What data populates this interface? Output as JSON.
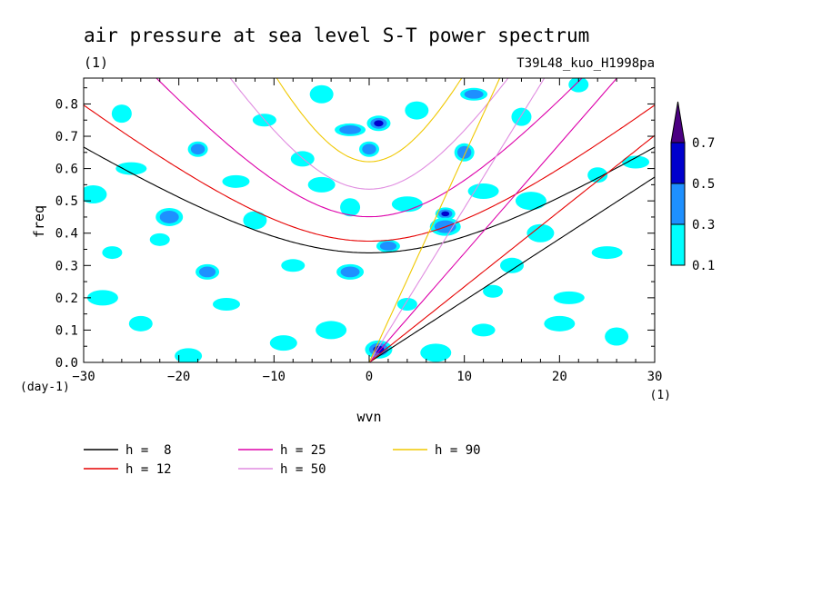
{
  "chart_data": {
    "type": "heatmap",
    "title": "air pressure at sea level S-T power spectrum",
    "subtitle_left": "(1)",
    "subtitle_right": "T39L48_kuo_H1998pa",
    "xlabel": "wvn",
    "ylabel": "freq",
    "x_unit": "(1)",
    "y_unit": "(day-1)",
    "xlim": [
      -30,
      30
    ],
    "ylim": [
      0,
      0.88
    ],
    "x_ticks": [
      -30,
      -20,
      -10,
      0,
      10,
      20,
      30
    ],
    "y_ticks": [
      0.0,
      0.1,
      0.2,
      0.3,
      0.4,
      0.5,
      0.6,
      0.7,
      0.8
    ],
    "colorbar": {
      "levels": [
        "0.1",
        "0.3",
        "0.5",
        "0.7"
      ],
      "colors": [
        "#00ffff",
        "#1e90ff",
        "#0000cd",
        "#4b0082"
      ]
    },
    "field_blobs": [
      {
        "x": 8,
        "y": 0.46,
        "level": 2
      },
      {
        "x": 1,
        "y": 0.74,
        "level": 2
      },
      {
        "x": 1,
        "y": 0.04,
        "level": 2
      },
      {
        "x": -2,
        "y": 0.72,
        "level": 1
      },
      {
        "x": 0,
        "y": 0.66,
        "level": 1
      },
      {
        "x": 5,
        "y": 0.78,
        "level": 0
      },
      {
        "x": 11,
        "y": 0.83,
        "level": 1
      },
      {
        "x": 12,
        "y": 0.53,
        "level": 0
      },
      {
        "x": 10,
        "y": 0.65,
        "level": 1
      },
      {
        "x": 2,
        "y": 0.36,
        "level": 1
      },
      {
        "x": -2,
        "y": 0.28,
        "level": 1
      },
      {
        "x": 8,
        "y": 0.42,
        "level": 1
      },
      {
        "x": -22,
        "y": 0.38,
        "level": 0
      },
      {
        "x": -17,
        "y": 0.28,
        "level": 1
      },
      {
        "x": -21,
        "y": 0.45,
        "level": 1
      },
      {
        "x": -25,
        "y": 0.6,
        "level": 0
      },
      {
        "x": -18,
        "y": 0.66,
        "level": 1
      },
      {
        "x": -12,
        "y": 0.44,
        "level": 0
      },
      {
        "x": -15,
        "y": 0.18,
        "level": 0
      },
      {
        "x": -28,
        "y": 0.2,
        "level": 0
      },
      {
        "x": -26,
        "y": 0.77,
        "level": 0
      },
      {
        "x": -8,
        "y": 0.3,
        "level": 0
      },
      {
        "x": -5,
        "y": 0.55,
        "level": 0
      },
      {
        "x": -4,
        "y": 0.1,
        "level": 0
      },
      {
        "x": 4,
        "y": 0.18,
        "level": 0
      },
      {
        "x": 15,
        "y": 0.3,
        "level": 0
      },
      {
        "x": 18,
        "y": 0.4,
        "level": 0
      },
      {
        "x": 21,
        "y": 0.2,
        "level": 0
      },
      {
        "x": 24,
        "y": 0.58,
        "level": 0
      },
      {
        "x": 26,
        "y": 0.08,
        "level": 0
      },
      {
        "x": 28,
        "y": 0.62,
        "level": 0
      },
      {
        "x": 20,
        "y": 0.12,
        "level": 0
      },
      {
        "x": 16,
        "y": 0.76,
        "level": 0
      },
      {
        "x": -11,
        "y": 0.75,
        "level": 0
      },
      {
        "x": -9,
        "y": 0.06,
        "level": 0
      },
      {
        "x": 7,
        "y": 0.03,
        "level": 0
      },
      {
        "x": 13,
        "y": 0.22,
        "level": 0
      },
      {
        "x": -24,
        "y": 0.12,
        "level": 0
      },
      {
        "x": -29,
        "y": 0.52,
        "level": 0
      },
      {
        "x": 25,
        "y": 0.34,
        "level": 0
      },
      {
        "x": 22,
        "y": 0.86,
        "level": 0
      },
      {
        "x": -5,
        "y": 0.83,
        "level": 0
      },
      {
        "x": -14,
        "y": 0.56,
        "level": 0
      },
      {
        "x": 4,
        "y": 0.49,
        "level": 0
      },
      {
        "x": -2,
        "y": 0.48,
        "level": 0
      },
      {
        "x": 12,
        "y": 0.1,
        "level": 0
      },
      {
        "x": -19,
        "y": 0.02,
        "level": 0
      },
      {
        "x": 17,
        "y": 0.5,
        "level": 0
      },
      {
        "x": -27,
        "y": 0.34,
        "level": 0
      },
      {
        "x": -7,
        "y": 0.63,
        "level": 0
      }
    ],
    "series": [
      {
        "name": "h =  8",
        "h": 8,
        "color": "#000000"
      },
      {
        "name": "h = 12",
        "h": 12,
        "color": "#e60000"
      },
      {
        "name": "h = 25",
        "h": 25,
        "color": "#dd00aa"
      },
      {
        "name": "h = 50",
        "h": 50,
        "color": "#e08ce0"
      },
      {
        "name": "h = 90",
        "h": 90,
        "color": "#f0c800"
      }
    ]
  }
}
